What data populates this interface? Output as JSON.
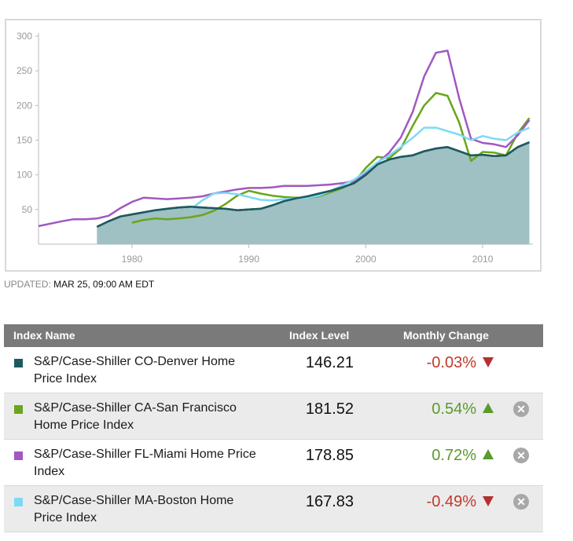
{
  "chart_data": {
    "type": "line",
    "xlim": [
      1972,
      2014.3
    ],
    "ylim": [
      0,
      300
    ],
    "x_ticks": [
      "1980",
      "1990",
      "2000",
      "2010"
    ],
    "y_ticks": [
      "50",
      "100",
      "150",
      "200",
      "250",
      "300"
    ],
    "series": [
      {
        "name": "S&P/Case-Shiller CO-Denver Home Price Index",
        "color": "#1d5a5e",
        "fill": "#9fc1c4",
        "area": true,
        "points": [
          [
            1977,
            25
          ],
          [
            1978,
            33
          ],
          [
            1979,
            40
          ],
          [
            1980,
            43
          ],
          [
            1981,
            46
          ],
          [
            1982,
            49
          ],
          [
            1983,
            51
          ],
          [
            1984,
            53
          ],
          [
            1985,
            54
          ],
          [
            1986,
            53
          ],
          [
            1987,
            52
          ],
          [
            1988,
            51
          ],
          [
            1989,
            49
          ],
          [
            1990,
            50
          ],
          [
            1991,
            51
          ],
          [
            1992,
            56
          ],
          [
            1993,
            62
          ],
          [
            1994,
            66
          ],
          [
            1995,
            69
          ],
          [
            1996,
            73
          ],
          [
            1997,
            77
          ],
          [
            1998,
            82
          ],
          [
            1999,
            88
          ],
          [
            2000,
            100
          ],
          [
            2001,
            115
          ],
          [
            2002,
            122
          ],
          [
            2003,
            126
          ],
          [
            2004,
            128
          ],
          [
            2005,
            134
          ],
          [
            2006,
            138
          ],
          [
            2007,
            140
          ],
          [
            2008,
            134
          ],
          [
            2009,
            128
          ],
          [
            2010,
            129
          ],
          [
            2011,
            127
          ],
          [
            2012,
            128
          ],
          [
            2013,
            140
          ],
          [
            2014,
            147
          ]
        ]
      },
      {
        "name": "S&P/Case-Shiller CA-San Francisco Home Price Index",
        "color": "#6aa51b",
        "area": false,
        "points": [
          [
            1980,
            31
          ],
          [
            1981,
            35
          ],
          [
            1982,
            37
          ],
          [
            1983,
            36
          ],
          [
            1984,
            37
          ],
          [
            1985,
            39
          ],
          [
            1986,
            42
          ],
          [
            1987,
            48
          ],
          [
            1988,
            58
          ],
          [
            1989,
            70
          ],
          [
            1990,
            77
          ],
          [
            1991,
            73
          ],
          [
            1992,
            70
          ],
          [
            1993,
            68
          ],
          [
            1994,
            67
          ],
          [
            1995,
            67
          ],
          [
            1996,
            69
          ],
          [
            1997,
            75
          ],
          [
            1998,
            81
          ],
          [
            1999,
            89
          ],
          [
            2000,
            110
          ],
          [
            2001,
            126
          ],
          [
            2002,
            124
          ],
          [
            2003,
            138
          ],
          [
            2004,
            170
          ],
          [
            2005,
            200
          ],
          [
            2006,
            218
          ],
          [
            2007,
            214
          ],
          [
            2008,
            175
          ],
          [
            2009,
            120
          ],
          [
            2010,
            133
          ],
          [
            2011,
            132
          ],
          [
            2012,
            128
          ],
          [
            2013,
            160
          ],
          [
            2014,
            182
          ]
        ]
      },
      {
        "name": "S&P/Case-Shiller FL-Miami Home Price Index",
        "color": "#a158c0",
        "area": false,
        "points": [
          [
            1972,
            26
          ],
          [
            1974,
            33
          ],
          [
            1975,
            36
          ],
          [
            1976,
            36
          ],
          [
            1977,
            37
          ],
          [
            1978,
            41
          ],
          [
            1979,
            52
          ],
          [
            1980,
            61
          ],
          [
            1981,
            67
          ],
          [
            1982,
            66
          ],
          [
            1983,
            65
          ],
          [
            1984,
            66
          ],
          [
            1985,
            67
          ],
          [
            1986,
            69
          ],
          [
            1987,
            73
          ],
          [
            1988,
            76
          ],
          [
            1989,
            79
          ],
          [
            1990,
            81
          ],
          [
            1991,
            81
          ],
          [
            1992,
            82
          ],
          [
            1993,
            84
          ],
          [
            1994,
            84
          ],
          [
            1995,
            84
          ],
          [
            1996,
            85
          ],
          [
            1997,
            86
          ],
          [
            1998,
            88
          ],
          [
            1999,
            91
          ],
          [
            2000,
            103
          ],
          [
            2001,
            117
          ],
          [
            2002,
            132
          ],
          [
            2003,
            154
          ],
          [
            2004,
            190
          ],
          [
            2005,
            242
          ],
          [
            2006,
            276
          ],
          [
            2007,
            279
          ],
          [
            2008,
            210
          ],
          [
            2009,
            152
          ],
          [
            2010,
            146
          ],
          [
            2011,
            144
          ],
          [
            2012,
            140
          ],
          [
            2013,
            157
          ],
          [
            2014,
            179
          ]
        ]
      },
      {
        "name": "S&P/Case-Shiller MA-Boston Home Price Index",
        "color": "#7ddaf5",
        "area": false,
        "points": [
          [
            1985,
            50
          ],
          [
            1986,
            63
          ],
          [
            1987,
            73
          ],
          [
            1988,
            74
          ],
          [
            1989,
            72
          ],
          [
            1990,
            68
          ],
          [
            1991,
            64
          ],
          [
            1992,
            63
          ],
          [
            1993,
            65
          ],
          [
            1994,
            66
          ],
          [
            1995,
            67
          ],
          [
            1996,
            70
          ],
          [
            1997,
            77
          ],
          [
            1998,
            85
          ],
          [
            1999,
            93
          ],
          [
            2000,
            105
          ],
          [
            2001,
            118
          ],
          [
            2002,
            128
          ],
          [
            2003,
            140
          ],
          [
            2004,
            153
          ],
          [
            2005,
            168
          ],
          [
            2006,
            168
          ],
          [
            2007,
            163
          ],
          [
            2008,
            158
          ],
          [
            2009,
            150
          ],
          [
            2010,
            156
          ],
          [
            2011,
            152
          ],
          [
            2012,
            150
          ],
          [
            2013,
            161
          ],
          [
            2014,
            168
          ]
        ]
      }
    ]
  },
  "updated": {
    "label": "UPDATED:",
    "value": "MAR 25, 09:00 AM EDT"
  },
  "table": {
    "headers": {
      "name": "Index Name",
      "level": "Index Level",
      "change": "Monthly Change"
    },
    "rows": [
      {
        "name": "S&P/Case-Shiller CO-Denver Home Price Index",
        "level": "146.21",
        "change": "-0.03%",
        "direction": "down",
        "color": "#1d5a5e",
        "removable": false
      },
      {
        "name": "S&P/Case-Shiller CA-San Francisco Home Price Index",
        "level": "181.52",
        "change": "0.54%",
        "direction": "up",
        "color": "#6aa51b",
        "removable": true
      },
      {
        "name": "S&P/Case-Shiller FL-Miami Home Price Index",
        "level": "178.85",
        "change": "0.72%",
        "direction": "up",
        "color": "#a158c0",
        "removable": true
      },
      {
        "name": "S&P/Case-Shiller MA-Boston Home Price Index",
        "level": "167.83",
        "change": "-0.49%",
        "direction": "down",
        "color": "#7ddaf5",
        "removable": true
      }
    ],
    "remove_icon": "close-circle-icon"
  }
}
